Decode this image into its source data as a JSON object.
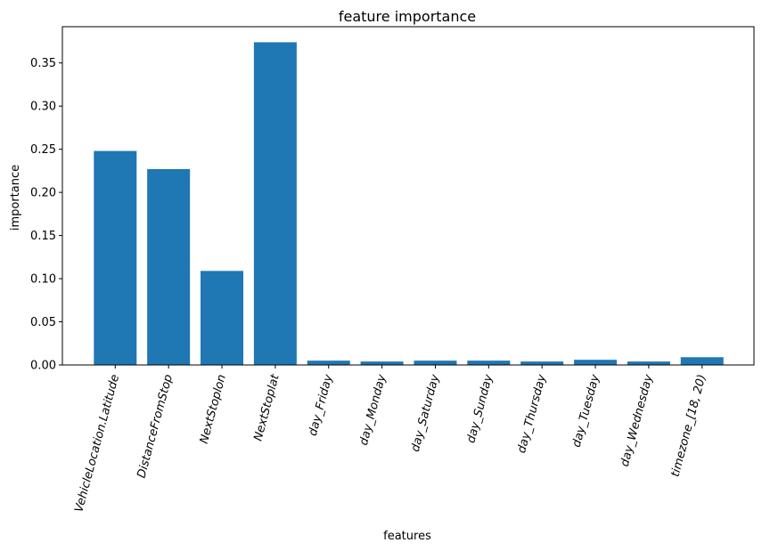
{
  "chart_data": {
    "type": "bar",
    "title": "feature importance",
    "xlabel": "features",
    "ylabel": "importance",
    "categories": [
      "VehicleLocation.Latitude",
      "DistanceFromStop",
      "NextStoplon",
      "NextStoplat",
      "day_Friday",
      "day_Monday",
      "day_Saturday",
      "day_Sunday",
      "day_Thursday",
      "day_Tuesday",
      "day_Wednesday",
      "timezone_[18, 20)"
    ],
    "values": [
      0.248,
      0.227,
      0.109,
      0.374,
      0.005,
      0.004,
      0.005,
      0.005,
      0.004,
      0.006,
      0.004,
      0.009
    ],
    "ylim": [
      0,
      0.392
    ],
    "yticks": [
      0.0,
      0.05,
      0.1,
      0.15,
      0.2,
      0.25,
      0.3,
      0.35
    ],
    "ytick_labels": [
      "0.00",
      "0.05",
      "0.10",
      "0.15",
      "0.20",
      "0.25",
      "0.30",
      "0.35"
    ],
    "bar_color": "#1f77b4",
    "grid": false,
    "legend": "none"
  }
}
